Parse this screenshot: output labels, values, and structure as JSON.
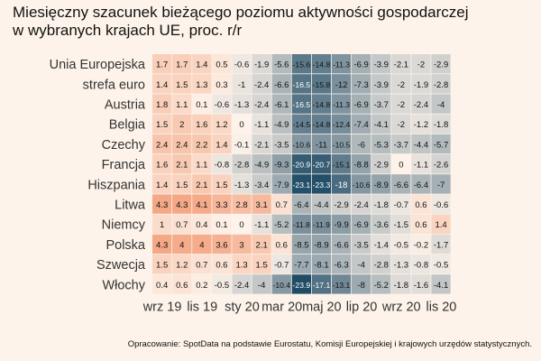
{
  "title": "Miesięczny szacunek bieżącego poziomu aktywności gospodarczej\nw wybranych krajach UE, proc. r/r",
  "source": "Opracowanie: SpotData na podstawie Eurostatu, Komisji Europejskiej i krajowych urzędów statystycznych.",
  "colors": {
    "background": "#fdf3ea",
    "positive": "#f4a582",
    "neutral": "#fdf3ea",
    "negative": "#1f4b66"
  },
  "chart_data": {
    "type": "heatmap",
    "title": "Miesięczny szacunek bieżącego poziomu aktywności gospodarczej w wybranych krajach UE, proc. r/r",
    "x_tick_labels": [
      "wrz 19",
      "lis 19",
      "sty 20",
      "mar 20",
      "maj 20",
      "lip 20",
      "wrz 20",
      "lis 20"
    ],
    "x_tick_positions": [
      0,
      2,
      4,
      6,
      8,
      10,
      12,
      14
    ],
    "rows": [
      "Unia Europejska",
      "strefa euro",
      "Austria",
      "Belgia",
      "Czechy",
      "Francja",
      "Hiszpania",
      "Litwa",
      "Niemcy",
      "Polska",
      "Szwecja",
      "Włochy"
    ],
    "values": [
      [
        "1.7",
        "1.7",
        "1.4",
        "0.5",
        "-0.6",
        "-1.9",
        "-5.6",
        "-15.6",
        "-14.8",
        "-11.3",
        "-6.9",
        "-3.9",
        "-2.1",
        "-2",
        "-2.9"
      ],
      [
        "1.4",
        "1.5",
        "1.3",
        "0.3",
        "-1",
        "-2.4",
        "-6.6",
        "-16.5",
        "-15.8",
        "-12",
        "-7.3",
        "-3.9",
        "-2",
        "-1.9",
        "-2.8"
      ],
      [
        "1.8",
        "1.1",
        "0.1",
        "-0.6",
        "-1.3",
        "-2.4",
        "-6.1",
        "-16.5",
        "-14.8",
        "-11.3",
        "-6.9",
        "-3.7",
        "-2",
        "-2.4",
        "-4"
      ],
      [
        "1.5",
        "2",
        "1.6",
        "1.2",
        "0",
        "-1.1",
        "-4.9",
        "-14.5",
        "-14.8",
        "-12.4",
        "-7.4",
        "-4.1",
        "-2",
        "-1.2",
        "-1.8"
      ],
      [
        "2.4",
        "2.4",
        "2.2",
        "1.4",
        "-0.1",
        "-2.1",
        "-3.5",
        "-10.6",
        "-11",
        "-10.5",
        "-6",
        "-5.3",
        "-3.7",
        "-4.4",
        "-5.7"
      ],
      [
        "1.6",
        "2.1",
        "1.1",
        "-0.8",
        "-2.8",
        "-4.9",
        "-9.3",
        "-20.9",
        "-20.7",
        "-15.1",
        "-8.8",
        "-2.9",
        "0",
        "-1.1",
        "-2.6"
      ],
      [
        "1.4",
        "1.5",
        "2.1",
        "1.5",
        "-1.3",
        "-3.4",
        "-7.9",
        "-23.1",
        "-23.3",
        "-18",
        "-10.6",
        "-8.9",
        "-6.6",
        "-6.4",
        "-7"
      ],
      [
        "4.3",
        "4.3",
        "4.1",
        "3.3",
        "2.8",
        "3.1",
        "0.7",
        "-6.4",
        "-4.4",
        "-2.9",
        "-2.4",
        "-1.8",
        "-0.7",
        "0.6",
        "-0.6"
      ],
      [
        "1",
        "0.7",
        "0.4",
        "0.1",
        "0",
        "-1.1",
        "-5.2",
        "-11.8",
        "-11.9",
        "-9.9",
        "-6.9",
        "-3.6",
        "-1.5",
        "0.6",
        "1.4"
      ],
      [
        "4.3",
        "4",
        "4",
        "3.6",
        "3",
        "2.1",
        "0.6",
        "-8.5",
        "-8.9",
        "-6.6",
        "-3.5",
        "-1.4",
        "-0.5",
        "-0.2",
        "-1.7"
      ],
      [
        "1.5",
        "1.2",
        "0.7",
        "0.6",
        "1.3",
        "1.5",
        "-0.7",
        "-7.7",
        "-8.1",
        "-6.3",
        "-4",
        "-2.8",
        "-1.3",
        "-0.8",
        "-0.5"
      ],
      [
        "0.4",
        "0.6",
        "0.2",
        "-0.5",
        "-2.4",
        "-4",
        "-10.4",
        "-23.9",
        "-17.1",
        "-13.1",
        "-8",
        "-5.2",
        "-1.8",
        "-1.6",
        "-4.1"
      ]
    ],
    "color_scale": {
      "min": -24,
      "mid": 0,
      "max": 4.5
    },
    "grid": true,
    "legend": "none"
  }
}
